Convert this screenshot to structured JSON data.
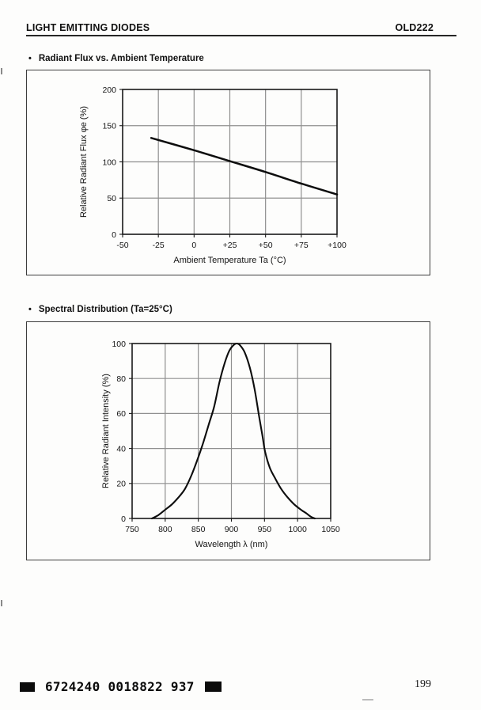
{
  "header": {
    "left_title": "LIGHT EMITTING DIODES",
    "right_part_number": "OLD222"
  },
  "sections": [
    {
      "bullet": "•",
      "title": "Radiant Flux vs. Ambient Temperature"
    },
    {
      "bullet": "•",
      "title": "Spectral Distribution  (Ta=25°C)"
    }
  ],
  "chart_data": [
    {
      "type": "line",
      "title": "Radiant Flux vs. Ambient Temperature",
      "xlabel": "Ambient Temperature  Ta (°C)",
      "ylabel": "Relative Radiant Flux  φe  (%)",
      "xlim": [
        -50,
        100
      ],
      "ylim": [
        0,
        200
      ],
      "grid": true,
      "legend": "none",
      "xticks": [
        {
          "v": -50,
          "label": "-50"
        },
        {
          "v": -25,
          "label": "-25"
        },
        {
          "v": 0,
          "label": "0"
        },
        {
          "v": 25,
          "label": "+25"
        },
        {
          "v": 50,
          "label": "+50"
        },
        {
          "v": 75,
          "label": "+75"
        },
        {
          "v": 100,
          "label": "+100"
        }
      ],
      "yticks": [
        {
          "v": 0,
          "label": "0"
        },
        {
          "v": 50,
          "label": "50"
        },
        {
          "v": 100,
          "label": "100"
        },
        {
          "v": 150,
          "label": "150"
        },
        {
          "v": 200,
          "label": "200"
        }
      ],
      "series": [
        {
          "name": "relative-radiant-flux",
          "color": "#0d0d0d",
          "points": [
            [
              -30,
              133
            ],
            [
              0,
              116
            ],
            [
              25,
              101
            ],
            [
              50,
              86
            ],
            [
              75,
              70
            ],
            [
              100,
              55
            ]
          ]
        }
      ]
    },
    {
      "type": "line",
      "title": "Spectral Distribution (Ta=25°C)",
      "xlabel": "Wavelength  λ  (nm)",
      "ylabel": "Relative Radiant Intensity  (%)",
      "xlim": [
        750,
        1050
      ],
      "ylim": [
        0,
        100
      ],
      "grid": true,
      "legend": "none",
      "xticks": [
        {
          "v": 750,
          "label": "750"
        },
        {
          "v": 800,
          "label": "800"
        },
        {
          "v": 850,
          "label": "850"
        },
        {
          "v": 900,
          "label": "900"
        },
        {
          "v": 950,
          "label": "950"
        },
        {
          "v": 1000,
          "label": "1000"
        },
        {
          "v": 1050,
          "label": "1050"
        }
      ],
      "yticks": [
        {
          "v": 0,
          "label": "0"
        },
        {
          "v": 20,
          "label": "20"
        },
        {
          "v": 40,
          "label": "40"
        },
        {
          "v": 60,
          "label": "60"
        },
        {
          "v": 80,
          "label": "80"
        },
        {
          "v": 100,
          "label": "100"
        }
      ],
      "series": [
        {
          "name": "relative-radiant-intensity",
          "color": "#0d0d0d",
          "points": [
            [
              780,
              0
            ],
            [
              790,
              2
            ],
            [
              800,
              5
            ],
            [
              810,
              8
            ],
            [
              820,
              12
            ],
            [
              830,
              17
            ],
            [
              840,
              25
            ],
            [
              850,
              35
            ],
            [
              858,
              44
            ],
            [
              866,
              54
            ],
            [
              874,
              64
            ],
            [
              882,
              78
            ],
            [
              890,
              89
            ],
            [
              897,
              96
            ],
            [
              903,
              99
            ],
            [
              908,
              100
            ],
            [
              913,
              99
            ],
            [
              920,
              95
            ],
            [
              928,
              86
            ],
            [
              935,
              74
            ],
            [
              942,
              58
            ],
            [
              947,
              47
            ],
            [
              951,
              38
            ],
            [
              958,
              29
            ],
            [
              966,
              23
            ],
            [
              975,
              17
            ],
            [
              985,
              12
            ],
            [
              995,
              8
            ],
            [
              1005,
              5
            ],
            [
              1013,
              3
            ],
            [
              1020,
              1
            ],
            [
              1026,
              0
            ]
          ]
        }
      ]
    }
  ],
  "footer": {
    "code": "6724240 0018822 937",
    "marks": [
      "solid-square",
      "solid-square"
    ],
    "page_number": "199"
  }
}
